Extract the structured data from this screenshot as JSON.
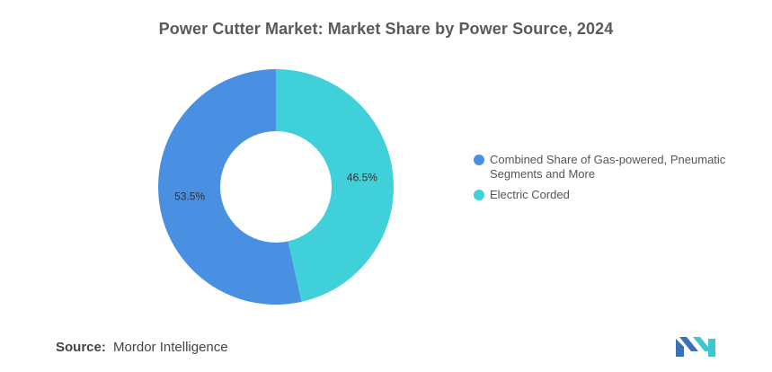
{
  "chart_data": {
    "type": "pie",
    "variant": "donut",
    "title": "Power Cutter Market: Market Share by Power Source, 2024",
    "categories": [
      "Combined Share of Gas-powered, Pneumatic Segments and More",
      "Electric Corded"
    ],
    "values": [
      53.5,
      46.5
    ],
    "data_labels": [
      "53.5%",
      "46.5%"
    ],
    "colors": [
      "#4a90e2",
      "#3fd0d9"
    ],
    "legend_placement": "right"
  },
  "footer": {
    "source_label": "Source:",
    "source_value": "Mordor Intelligence"
  },
  "logo": {
    "icon": "mordor-intelligence-logo-icon",
    "colors": [
      "#3b6fb6",
      "#3fc7cf"
    ]
  }
}
